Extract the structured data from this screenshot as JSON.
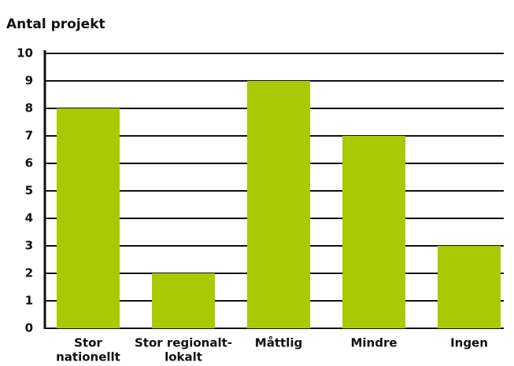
{
  "chart_data": {
    "type": "bar",
    "title": "Antal projekt",
    "categories": [
      [
        "Stor",
        "nationellt"
      ],
      [
        "Stor regionalt-",
        "lokalt"
      ],
      [
        "Måttlig"
      ],
      [
        "Mindre"
      ],
      [
        "Ingen"
      ]
    ],
    "values": [
      8,
      2,
      9,
      7,
      3
    ],
    "color": "#a9c900",
    "ylim": [
      0,
      10
    ],
    "yticks": [
      0,
      1,
      2,
      3,
      4,
      5,
      6,
      7,
      8,
      9,
      10
    ],
    "grid": true
  }
}
